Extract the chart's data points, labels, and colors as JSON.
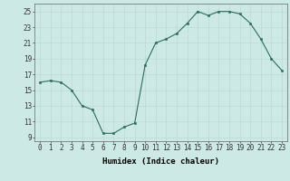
{
  "x": [
    0,
    1,
    2,
    3,
    4,
    5,
    6,
    7,
    8,
    9,
    10,
    11,
    12,
    13,
    14,
    15,
    16,
    17,
    18,
    19,
    20,
    21,
    22,
    23
  ],
  "y": [
    16,
    16.2,
    16,
    15,
    13,
    12.5,
    9.5,
    9.5,
    10.3,
    10.8,
    18.2,
    21,
    21.5,
    22.2,
    23.5,
    25,
    24.5,
    25,
    25,
    24.7,
    23.5,
    21.5,
    19,
    17.5
  ],
  "line_color": "#2e6b5e",
  "marker_color": "#2e6b5e",
  "bg_color": "#cce9e5",
  "grid_color_major": "#b8d8d4",
  "grid_color_minor": "#b8d8d4",
  "xlabel": "Humidex (Indice chaleur)",
  "xlim": [
    -0.5,
    23.5
  ],
  "ylim": [
    8.5,
    26
  ],
  "yticks": [
    9,
    11,
    13,
    15,
    17,
    19,
    21,
    23,
    25
  ],
  "xticks": [
    0,
    1,
    2,
    3,
    4,
    5,
    6,
    7,
    8,
    9,
    10,
    11,
    12,
    13,
    14,
    15,
    16,
    17,
    18,
    19,
    20,
    21,
    22,
    23
  ],
  "label_fontsize": 6.5,
  "tick_fontsize": 5.5
}
